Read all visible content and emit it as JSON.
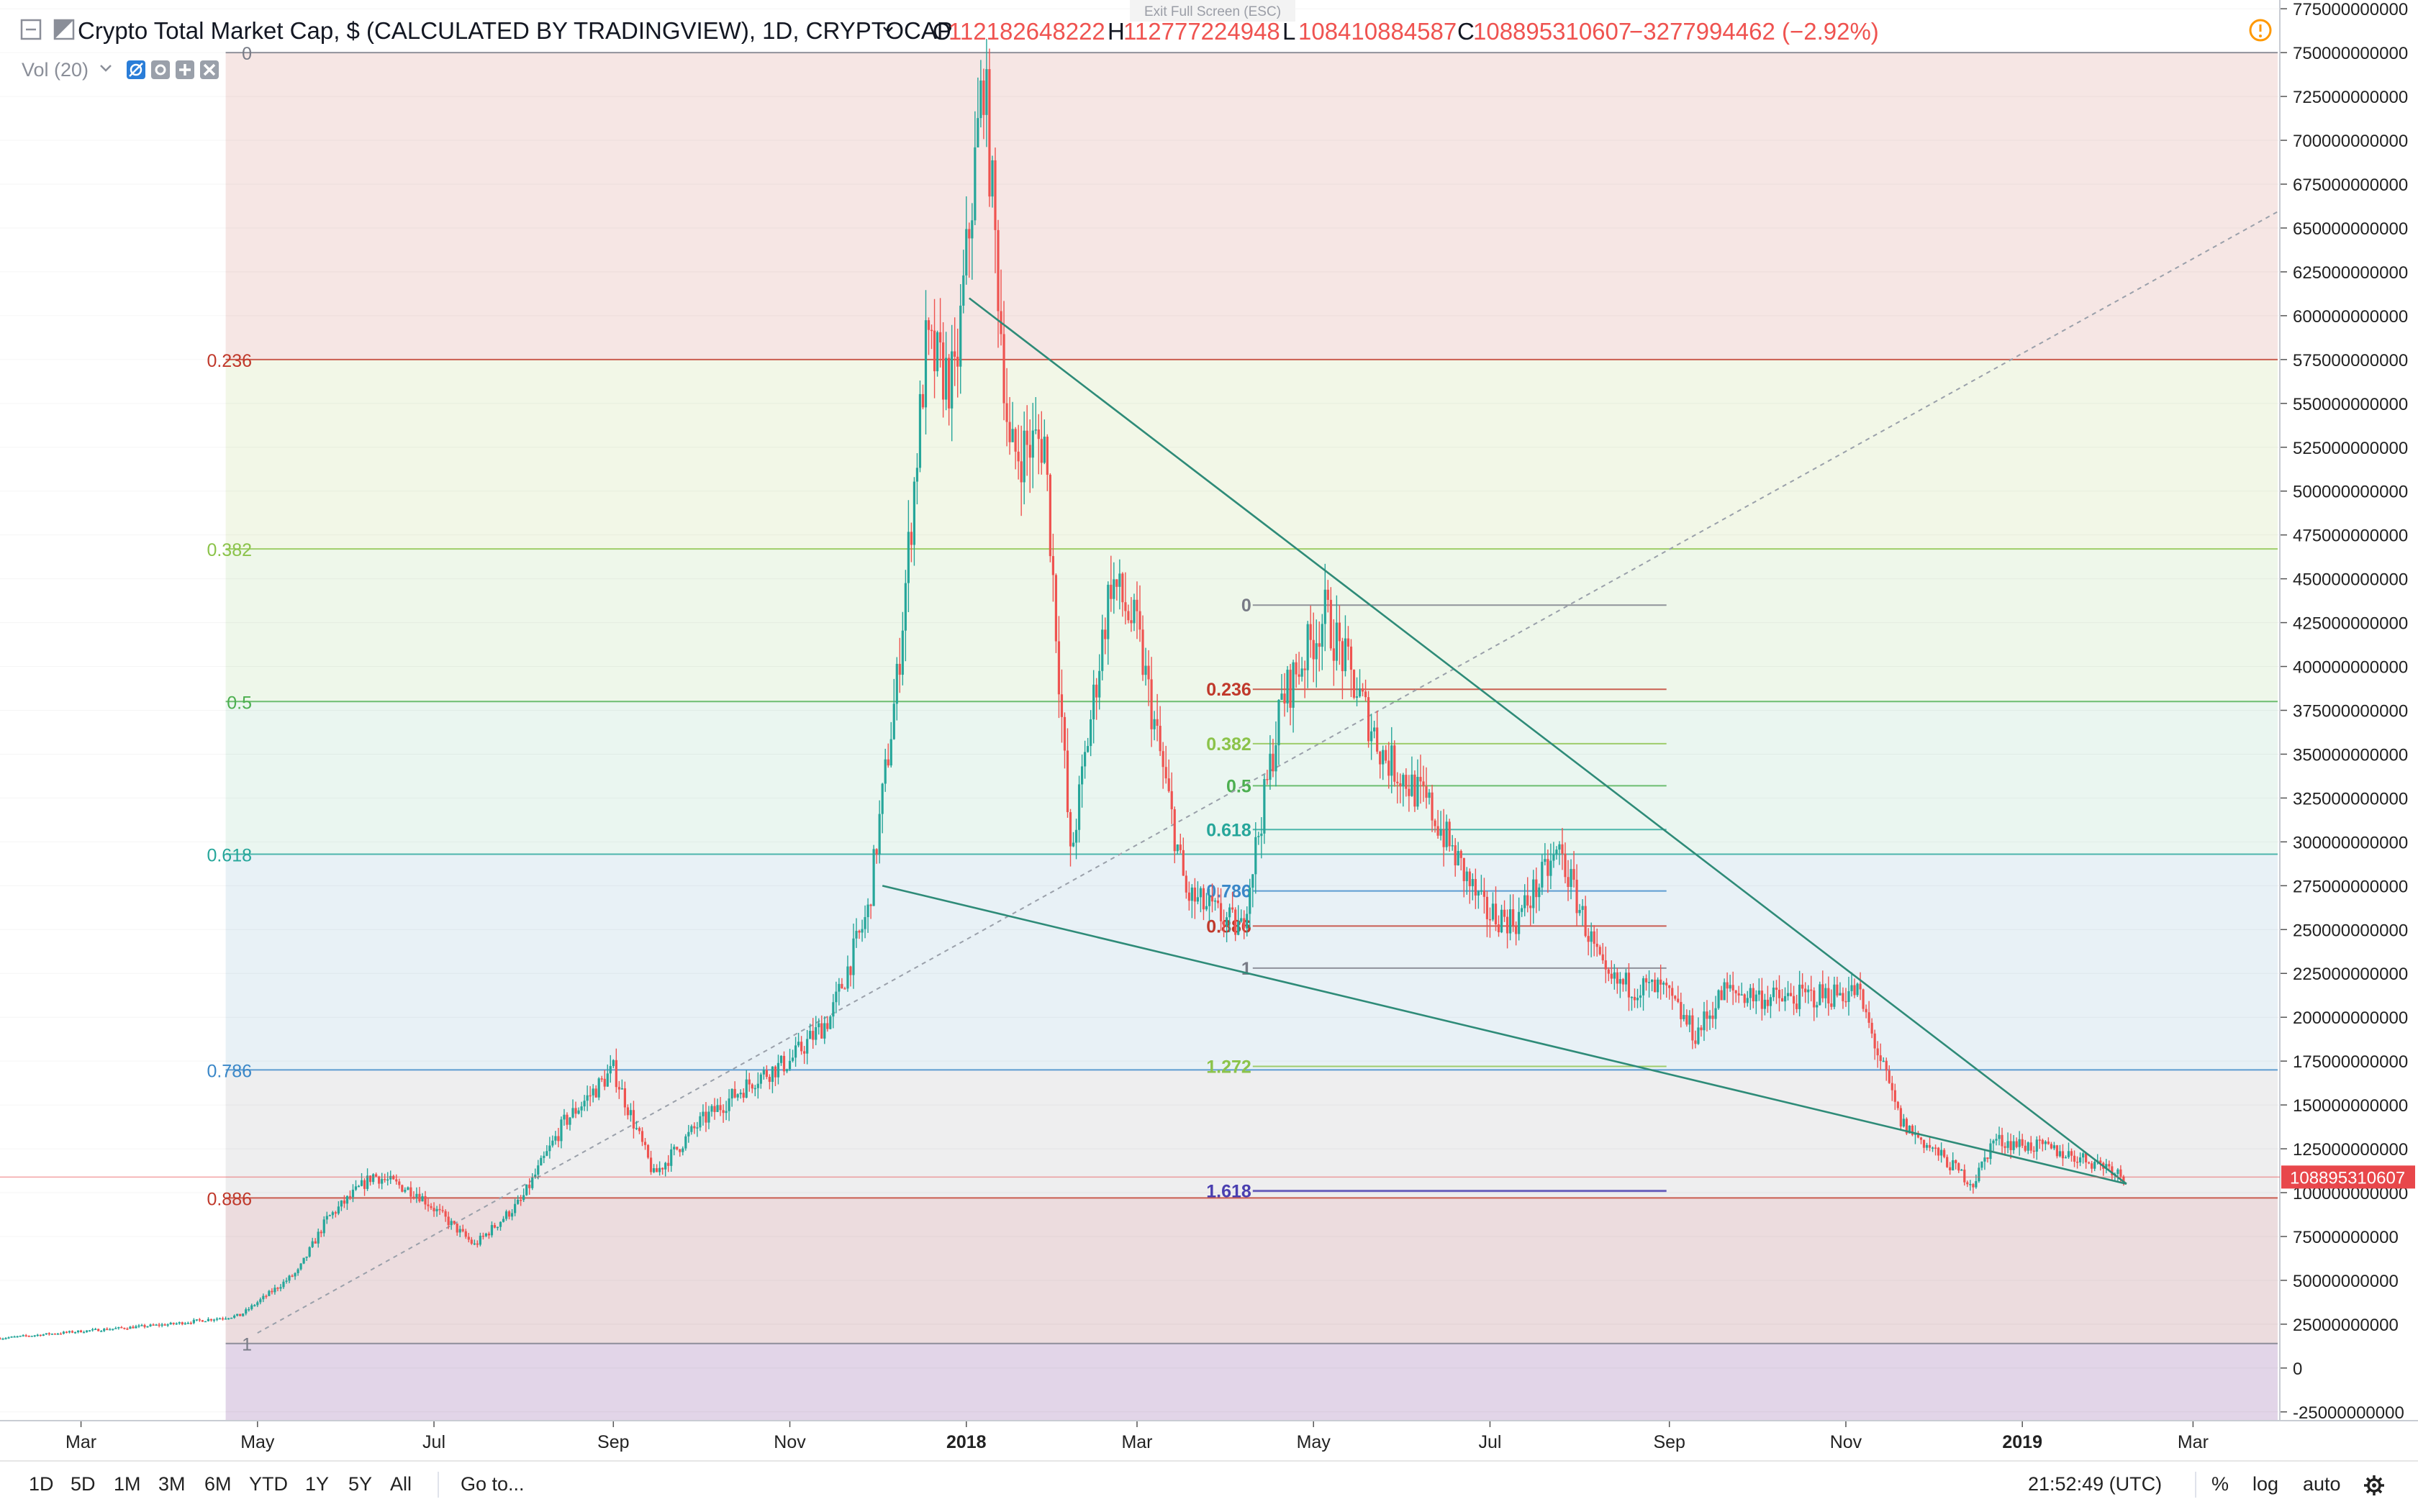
{
  "header": {
    "symbol_title": "Crypto Total Market Cap, $ (CALCULATED BY TRADINGVIEW), 1D, CRYPTOCAP",
    "ohlc": [
      {
        "label": "O",
        "value": "112182648222"
      },
      {
        "label": "H",
        "value": "112777224948"
      },
      {
        "label": "L",
        "value": "108410884587"
      },
      {
        "label": "C",
        "value": "108895310607"
      }
    ],
    "change": "−3277994462 (−2.92%)",
    "exit_fullscreen": "Exit Full Screen (ESC)",
    "volume_label": "Vol (20)"
  },
  "colors": {
    "up": "#26a69a",
    "down": "#ef5350",
    "trendline": "#2e8b78",
    "price_tag": "#e8474b",
    "warning": "#ff9800"
  },
  "chart_data": {
    "type": "candlestick",
    "title": "Crypto Total Market Cap, $ (CALCULATED BY TRADINGVIEW), 1D, CRYPTOCAP",
    "x_start": "2017-02-01",
    "x_end": "2019-03-31",
    "ylim": [
      -30000000000,
      780000000000
    ],
    "y_ticks": [
      -25000000000,
      0,
      25000000000,
      50000000000,
      75000000000,
      100000000000,
      125000000000,
      150000000000,
      175000000000,
      200000000000,
      225000000000,
      250000000000,
      275000000000,
      300000000000,
      325000000000,
      350000000000,
      375000000000,
      400000000000,
      425000000000,
      450000000000,
      475000000000,
      500000000000,
      525000000000,
      550000000000,
      575000000000,
      600000000000,
      625000000000,
      650000000000,
      675000000000,
      700000000000,
      725000000000,
      750000000000,
      775000000000
    ],
    "y_tick_labels": [
      "-25000000000",
      "0",
      "25000000000",
      "50000000000",
      "75000000000",
      "100000000000",
      "125000000000",
      "150000000000",
      "175000000000",
      "200000000000",
      "225000000000",
      "250000000000",
      "275000000000",
      "300000000000",
      "325000000000",
      "350000000000",
      "375000000000",
      "400000000000",
      "425000000000",
      "450000000000",
      "475000000000",
      "500000000000",
      "525000000000",
      "550000000000",
      "575000000000",
      "600000000000",
      "625000000000",
      "650000000000",
      "675000000000",
      "700000000000",
      "725000000000",
      "750000000000",
      "775000000000"
    ],
    "x_ticks": [
      {
        "date": "2017-03-01",
        "label": "Mar",
        "bold": false
      },
      {
        "date": "2017-05-01",
        "label": "May",
        "bold": false
      },
      {
        "date": "2017-07-01",
        "label": "Jul",
        "bold": false
      },
      {
        "date": "2017-09-01",
        "label": "Sep",
        "bold": false
      },
      {
        "date": "2017-11-01",
        "label": "Nov",
        "bold": false
      },
      {
        "date": "2018-01-01",
        "label": "2018",
        "bold": true
      },
      {
        "date": "2018-03-01",
        "label": "Mar",
        "bold": false
      },
      {
        "date": "2018-05-01",
        "label": "May",
        "bold": false
      },
      {
        "date": "2018-07-01",
        "label": "Jul",
        "bold": false
      },
      {
        "date": "2018-09-01",
        "label": "Sep",
        "bold": false
      },
      {
        "date": "2018-11-01",
        "label": "Nov",
        "bold": false
      },
      {
        "date": "2019-01-01",
        "label": "2019",
        "bold": true
      },
      {
        "date": "2019-03-01",
        "label": "Mar",
        "bold": false
      }
    ],
    "price_path": [
      [
        "2017-02-01",
        17000000000
      ],
      [
        "2017-03-01",
        21000000000
      ],
      [
        "2017-04-01",
        25000000000
      ],
      [
        "2017-04-25",
        30000000000
      ],
      [
        "2017-05-15",
        55000000000
      ],
      [
        "2017-05-25",
        85000000000
      ],
      [
        "2017-06-10",
        110000000000
      ],
      [
        "2017-06-25",
        100000000000
      ],
      [
        "2017-07-15",
        70000000000
      ],
      [
        "2017-07-31",
        95000000000
      ],
      [
        "2017-08-15",
        140000000000
      ],
      [
        "2017-09-01",
        170000000000
      ],
      [
        "2017-09-15",
        110000000000
      ],
      [
        "2017-10-01",
        140000000000
      ],
      [
        "2017-10-20",
        165000000000
      ],
      [
        "2017-11-01",
        175000000000
      ],
      [
        "2017-11-15",
        200000000000
      ],
      [
        "2017-11-28",
        260000000000
      ],
      [
        "2017-12-08",
        390000000000
      ],
      [
        "2017-12-18",
        580000000000
      ],
      [
        "2017-12-28",
        560000000000
      ],
      [
        "2018-01-07",
        740000000000
      ],
      [
        "2018-01-16",
        520000000000
      ],
      [
        "2018-01-28",
        530000000000
      ],
      [
        "2018-02-06",
        290000000000
      ],
      [
        "2018-02-20",
        450000000000
      ],
      [
        "2018-03-01",
        420000000000
      ],
      [
        "2018-03-18",
        270000000000
      ],
      [
        "2018-04-06",
        250000000000
      ],
      [
        "2018-04-20",
        380000000000
      ],
      [
        "2018-05-05",
        430000000000
      ],
      [
        "2018-05-25",
        350000000000
      ],
      [
        "2018-06-10",
        320000000000
      ],
      [
        "2018-06-29",
        260000000000
      ],
      [
        "2018-07-10",
        255000000000
      ],
      [
        "2018-07-25",
        295000000000
      ],
      [
        "2018-08-10",
        220000000000
      ],
      [
        "2018-08-30",
        215000000000
      ],
      [
        "2018-09-10",
        190000000000
      ],
      [
        "2018-09-20",
        215000000000
      ],
      [
        "2018-10-10",
        210000000000
      ],
      [
        "2018-11-05",
        215000000000
      ],
      [
        "2018-11-20",
        140000000000
      ],
      [
        "2018-12-15",
        105000000000
      ],
      [
        "2018-12-22",
        130000000000
      ],
      [
        "2019-01-10",
        125000000000
      ],
      [
        "2019-01-31",
        115000000000
      ],
      [
        "2019-02-05",
        108895310607
      ]
    ],
    "fib_levels": [
      {
        "label": "0",
        "value": 750000000000,
        "color": "#787b86",
        "fill": "#f6e6e4"
      },
      {
        "label": "0.236",
        "value": 575000000000,
        "color": "#c0392b",
        "fill": "#f2f7e7"
      },
      {
        "label": "0.382",
        "value": 467000000000,
        "color": "#8bc34a",
        "fill": "#eef7ea"
      },
      {
        "label": "0.5",
        "value": 380000000000,
        "color": "#4caf50",
        "fill": "#eaf6f0"
      },
      {
        "label": "0.618",
        "value": 293000000000,
        "color": "#26a69a",
        "fill": "#e8f1f6"
      },
      {
        "label": "0.786",
        "value": 170000000000,
        "color": "#3a87c8",
        "fill": "#eeeeef"
      },
      {
        "label": "0.886",
        "value": 97000000000,
        "color": "#c0392b",
        "fill": "#ecdcde"
      },
      {
        "label": "1",
        "value": 14000000000,
        "color": "#787b86",
        "fill": "#e2d5e8"
      }
    ],
    "fib_inner": [
      {
        "label": "0",
        "value": 435000000000,
        "color": "#787b86"
      },
      {
        "label": "0.236",
        "value": 387000000000,
        "color": "#c0392b"
      },
      {
        "label": "0.382",
        "value": 356000000000,
        "color": "#8bc34a"
      },
      {
        "label": "0.5",
        "value": 332000000000,
        "color": "#4caf50"
      },
      {
        "label": "0.618",
        "value": 307000000000,
        "color": "#26a69a"
      },
      {
        "label": "0.786",
        "value": 272000000000,
        "color": "#3a87c8"
      },
      {
        "label": "0.886",
        "value": 252000000000,
        "color": "#c0392b"
      },
      {
        "label": "1",
        "value": 228000000000,
        "color": "#787b86"
      },
      {
        "label": "1.272",
        "value": 172000000000,
        "color": "#8bc34a"
      },
      {
        "label": "1.618",
        "value": 101000000000,
        "color": "#4a3fb0"
      }
    ],
    "fib_inner_start": "2018-04-10",
    "fib_inner_end": "2018-08-31",
    "trendlines": [
      {
        "name": "upper",
        "from": [
          "2018-01-02",
          610000000000
        ],
        "to": [
          "2019-02-06",
          105000000000
        ]
      },
      {
        "name": "lower",
        "from": [
          "2017-12-03",
          275000000000
        ],
        "to": [
          "2019-02-06",
          105000000000
        ]
      }
    ],
    "dashed_line": {
      "from": [
        "2017-05-01",
        20000000000
      ],
      "to": [
        "2019-03-31",
        660000000000
      ]
    },
    "last_price": 108895310607,
    "last_price_label": "108895310607"
  },
  "toolbar": {
    "timeframes": [
      "1D",
      "5D",
      "1M",
      "3M",
      "6M",
      "YTD",
      "1Y",
      "5Y",
      "All"
    ],
    "goto": "Go to...",
    "clock": "21:52:49 (UTC)",
    "percent": "%",
    "log": "log",
    "auto": "auto"
  }
}
